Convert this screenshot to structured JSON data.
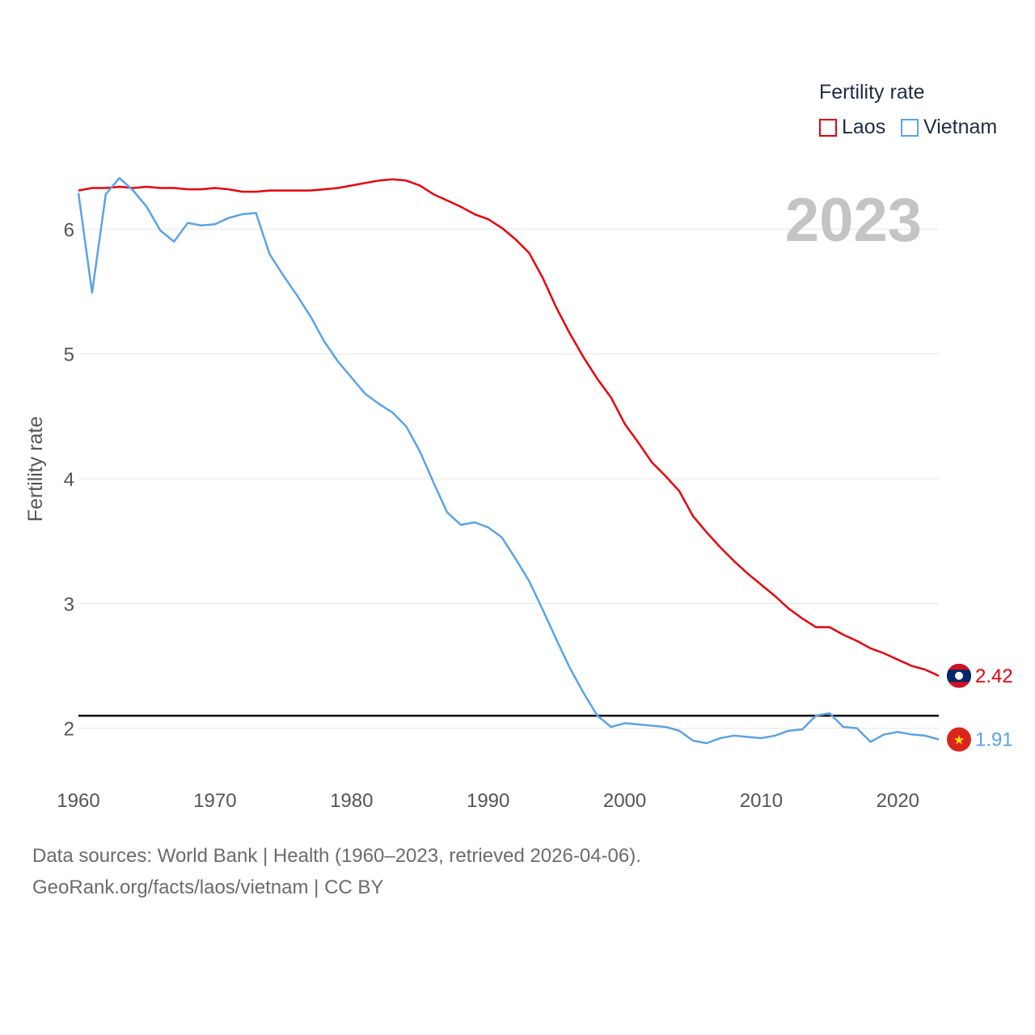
{
  "legend": {
    "title": "Fertility rate",
    "items": [
      {
        "label": "Laos",
        "color": "#e8000b"
      },
      {
        "label": "Vietnam",
        "color": "#5aa3e6"
      }
    ]
  },
  "footer": {
    "line1": "Data sources: World Bank | Health (1960–2023, retrieved 2026-04-06).",
    "line2": "GeoRank.org/facts/laos/vietnam | CC BY"
  },
  "chart_data": {
    "type": "line",
    "title": "Fertility rate",
    "year_label": "2023",
    "xlabel": "",
    "ylabel": "Fertility rate",
    "xlim": [
      1960,
      2023
    ],
    "ylim": [
      1.55,
      6.8
    ],
    "x_ticks": [
      1960,
      1970,
      1980,
      1990,
      2000,
      2010,
      2020
    ],
    "y_ticks": [
      2,
      3,
      4,
      5,
      6
    ],
    "reference_line": {
      "value": 2.1,
      "color": "#000000"
    },
    "end_labels": [
      {
        "series": "Laos",
        "text": "2.42",
        "value": 2.42,
        "color": "#e8000b",
        "flag": "laos-flag"
      },
      {
        "series": "Vietnam",
        "text": "1.91",
        "value": 1.91,
        "color": "#5aa3e6",
        "flag": "vietnam-flag"
      }
    ],
    "x": [
      1960,
      1961,
      1962,
      1963,
      1964,
      1965,
      1966,
      1967,
      1968,
      1969,
      1970,
      1971,
      1972,
      1973,
      1974,
      1975,
      1976,
      1977,
      1978,
      1979,
      1980,
      1981,
      1982,
      1983,
      1984,
      1985,
      1986,
      1987,
      1988,
      1989,
      1990,
      1991,
      1992,
      1993,
      1994,
      1995,
      1996,
      1997,
      1998,
      1999,
      2000,
      2001,
      2002,
      2003,
      2004,
      2005,
      2006,
      2007,
      2008,
      2009,
      2010,
      2011,
      2012,
      2013,
      2014,
      2015,
      2016,
      2017,
      2018,
      2019,
      2020,
      2021,
      2022,
      2023
    ],
    "series": [
      {
        "name": "Laos",
        "color": "#e8000b",
        "values": [
          6.31,
          6.33,
          6.33,
          6.34,
          6.33,
          6.34,
          6.33,
          6.33,
          6.32,
          6.32,
          6.33,
          6.32,
          6.3,
          6.3,
          6.31,
          6.31,
          6.31,
          6.31,
          6.32,
          6.33,
          6.35,
          6.37,
          6.39,
          6.4,
          6.39,
          6.35,
          6.28,
          6.23,
          6.18,
          6.12,
          6.08,
          6.01,
          5.92,
          5.81,
          5.61,
          5.37,
          5.16,
          4.97,
          4.8,
          4.65,
          4.44,
          4.29,
          4.13,
          4.02,
          3.9,
          3.7,
          3.57,
          3.45,
          3.34,
          3.24,
          3.15,
          3.06,
          2.96,
          2.88,
          2.81,
          2.81,
          2.75,
          2.7,
          2.64,
          2.6,
          2.55,
          2.5,
          2.47,
          2.42
        ]
      },
      {
        "name": "Vietnam",
        "color": "#5aa3e6",
        "values": [
          6.29,
          5.49,
          6.28,
          6.41,
          6.31,
          6.18,
          5.99,
          5.9,
          6.05,
          6.03,
          6.04,
          6.09,
          6.12,
          6.13,
          5.8,
          5.63,
          5.47,
          5.3,
          5.1,
          4.94,
          4.81,
          4.68,
          4.6,
          4.53,
          4.42,
          4.22,
          3.97,
          3.73,
          3.63,
          3.65,
          3.61,
          3.53,
          3.36,
          3.18,
          2.95,
          2.71,
          2.48,
          2.28,
          2.1,
          2.01,
          2.04,
          2.03,
          2.02,
          2.01,
          1.98,
          1.9,
          1.88,
          1.92,
          1.94,
          1.93,
          1.92,
          1.94,
          1.98,
          1.99,
          2.1,
          2.12,
          2.01,
          2.0,
          1.89,
          1.95,
          1.97,
          1.95,
          1.94,
          1.91
        ]
      }
    ]
  }
}
